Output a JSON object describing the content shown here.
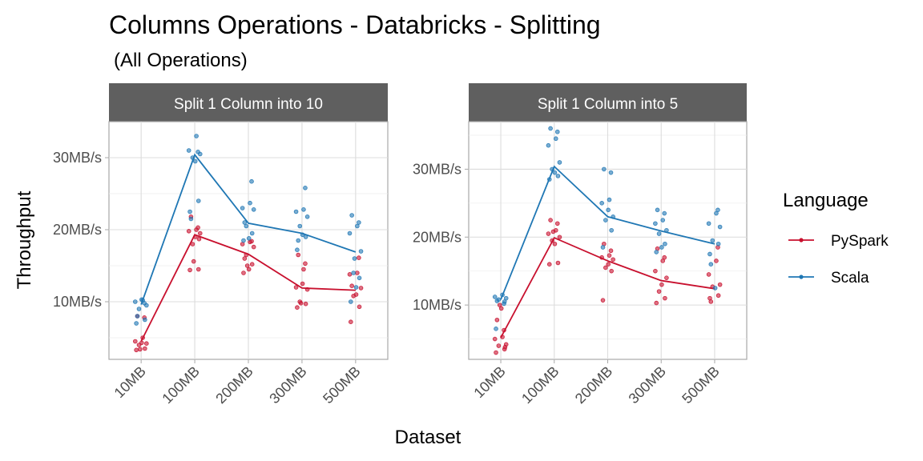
{
  "chart_data": {
    "type": "line",
    "title": "Columns Operations - Databricks - Splitting",
    "subtitle": "(All Operations)",
    "xlabel": "Dataset",
    "ylabel": "Throughput",
    "categories": [
      "10MB",
      "100MB",
      "200MB",
      "300MB",
      "500MB"
    ],
    "legend": {
      "title": "Language",
      "position": "right",
      "entries": [
        {
          "name": "PySpark",
          "color": "#c8102e"
        },
        {
          "name": "Scala",
          "color": "#1f77b4"
        }
      ]
    },
    "grid": true,
    "panels": [
      {
        "name": "Split 1 Column into 10",
        "ylim": [
          2,
          35
        ],
        "yticks": [
          10,
          20,
          30
        ],
        "ytick_labels": [
          "10MB/s",
          "20MB/s",
          "30MB/s"
        ],
        "series": [
          {
            "name": "PySpark",
            "means": [
              4.5,
              19.3,
              16.6,
              11.9,
              11.6
            ],
            "points": [
              [
                3.3,
                3.5,
                4.0,
                4.2,
                4.5,
                5.0,
                7.8,
                8.0,
                4.3,
                3.4
              ],
              [
                14.4,
                14.5,
                18.0,
                19.5,
                19.8,
                20.0,
                20.3,
                21.8,
                19.0,
                15.6,
                18.7
              ],
              [
                14.0,
                15.2,
                16.5,
                17.6,
                18.0,
                18.3,
                18.4,
                16.0,
                14.5,
                15.0
              ],
              [
                9.2,
                9.7,
                10.0,
                11.7,
                12.0,
                14.5,
                15.3,
                16.5,
                12.5,
                9.8
              ],
              [
                7.2,
                9.3,
                10.8,
                11.9,
                13.8,
                14.0,
                16.1,
                12.2,
                11.0
              ]
            ]
          },
          {
            "name": "Scala",
            "means": [
              9.6,
              30.4,
              20.9,
              19.5,
              16.9
            ],
            "points": [
              [
                7.0,
                7.5,
                9.0,
                9.5,
                10.0,
                10.2,
                9.8,
                8.0,
                10.3
              ],
              [
                22.5,
                24.0,
                30.0,
                30.5,
                31.0,
                33.0,
                30.8,
                21.5,
                29.5
              ],
              [
                18.5,
                19.5,
                20.5,
                22.8,
                23.0,
                23.7,
                26.7,
                21.0,
                18.8
              ],
              [
                17.2,
                19.0,
                20.5,
                21.8,
                22.5,
                22.8,
                25.8,
                18.5,
                19.3
              ],
              [
                10.0,
                13.3,
                14.0,
                17.0,
                19.5,
                20.5,
                21.0,
                22.0,
                12.0,
                16.0
              ]
            ]
          }
        ]
      },
      {
        "name": "Split 1 Column into 5",
        "ylim": [
          2,
          37
        ],
        "yticks": [
          10,
          20,
          30
        ],
        "ytick_labels": [
          "10MB/s",
          "20MB/s",
          "30MB/s"
        ],
        "series": [
          {
            "name": "PySpark",
            "means": [
              5.2,
              19.9,
              16.5,
              13.6,
              12.4
            ],
            "points": [
              [
                3.0,
                3.5,
                4.0,
                4.2,
                5.0,
                5.3,
                6.3,
                7.8,
                9.5,
                10.0,
                3.8
              ],
              [
                16.0,
                16.2,
                19.5,
                20.0,
                20.5,
                21.0,
                22.0,
                22.5,
                19.0,
                20.8
              ],
              [
                10.7,
                15.0,
                15.5,
                16.7,
                17.0,
                17.3,
                18.0,
                19.0,
                16.0
              ],
              [
                10.3,
                11.0,
                12.0,
                14.0,
                15.0,
                16.5,
                17.0,
                18.3,
                13.0
              ],
              [
                11.0,
                11.4,
                12.7,
                13.0,
                14.5,
                16.5,
                18.5,
                10.5
              ]
            ]
          },
          {
            "name": "Scala",
            "means": [
              10.8,
              30.4,
              23.0,
              20.9,
              19.0
            ],
            "points": [
              [
                6.5,
                10.5,
                10.8,
                11.0,
                11.2,
                11.5,
                10.2,
                10.6
              ],
              [
                28.5,
                29.0,
                30.0,
                31.0,
                33.5,
                34.5,
                35.5,
                36.0,
                29.5
              ],
              [
                18.5,
                21.0,
                22.5,
                23.0,
                25.0,
                25.5,
                29.5,
                30.0,
                24.0
              ],
              [
                17.8,
                19.0,
                20.5,
                21.0,
                22.0,
                22.5,
                23.5,
                24.0,
                18.5
              ],
              [
                17.5,
                19.0,
                19.5,
                21.5,
                22.0,
                23.5,
                24.0,
                16.0,
                12.5
              ]
            ]
          }
        ]
      }
    ]
  }
}
